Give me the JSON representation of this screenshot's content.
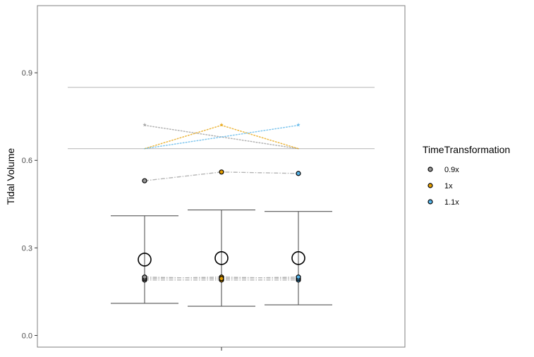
{
  "chart_data": {
    "type": "scatter",
    "title": "",
    "xlabel": "",
    "ylabel": "Tidal Volume",
    "ylim": [
      -0.04,
      1.13
    ],
    "y_ticks": [
      "0.0",
      "0.3",
      "0.6",
      "0.9"
    ],
    "y_tick_values": [
      0.0,
      0.3,
      0.6,
      0.9
    ],
    "grid": false,
    "legend_position": "right",
    "legend_title": "TimeTransformation",
    "categories": [
      "0.9x",
      "1x",
      "1.1x"
    ],
    "colors": {
      "0.9x": "#999999",
      "1x": "#E69F00",
      "1.1x": "#56B4E9"
    },
    "reference_lines": [
      0.85,
      0.64
    ],
    "means": [
      0.26,
      0.265,
      0.265
    ],
    "error_bars": [
      {
        "group": "0.9x",
        "low": 0.11,
        "high": 0.41
      },
      {
        "group": "1x",
        "low": 0.1,
        "high": 0.43
      },
      {
        "group": "1.1x",
        "low": 0.105,
        "high": 0.425
      }
    ],
    "upper_points": [
      0.53,
      0.56,
      0.555
    ],
    "lower_points": [
      [
        0.19,
        0.195,
        0.2
      ],
      [
        0.19,
        0.2,
        0.195
      ],
      [
        0.19,
        0.195,
        0.2
      ]
    ],
    "significance_marks": [
      {
        "group": "0.9x",
        "symbol": "*",
        "y": 0.72
      },
      {
        "group": "1x",
        "symbol": "*",
        "y": 0.72
      },
      {
        "group": "1.1x",
        "symbol": "*",
        "y": 0.72
      }
    ],
    "significance_base": 0.64
  }
}
